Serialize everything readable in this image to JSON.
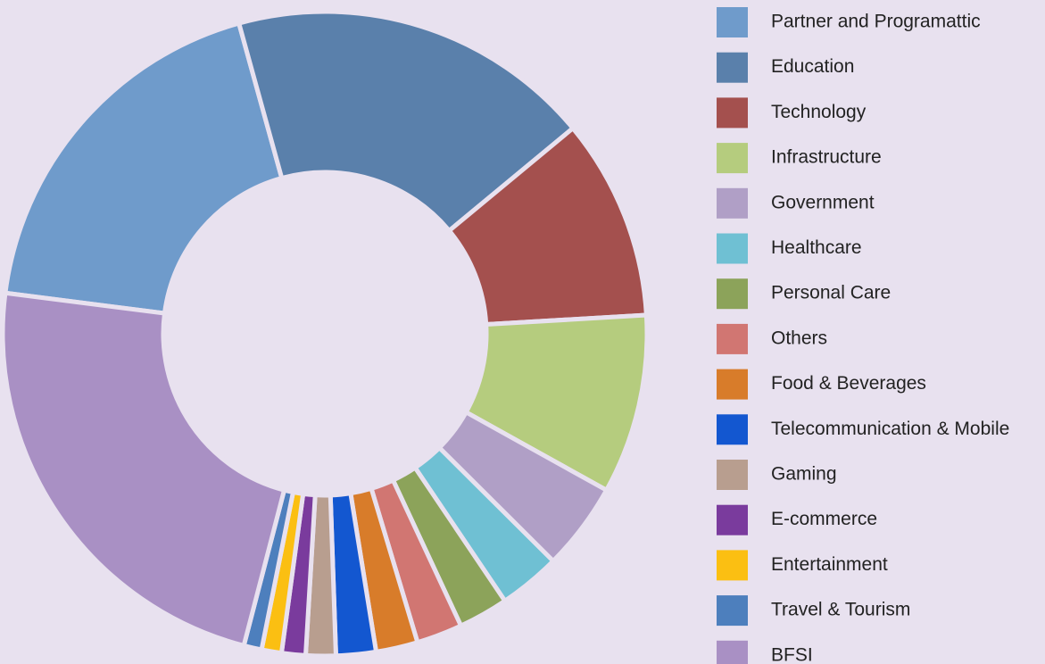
{
  "chart_data": {
    "type": "donut",
    "categories": [
      "Partner and Programattic",
      "Education",
      "Technology",
      "Infrastructure",
      "Government",
      "Healthcare",
      "Personal Care",
      "Others",
      "Food & Beverages",
      "Telecommunication & Mobile",
      "Gaming",
      "E-commerce",
      "Entertainment",
      "Travel & Tourism",
      "BFSI"
    ],
    "values": [
      18.7,
      18.3,
      10.1,
      9.0,
      4.4,
      3.1,
      2.5,
      2.3,
      2.1,
      2.0,
      1.5,
      1.2,
      1.0,
      0.9,
      23.0
    ],
    "colors": [
      "#6f9bcb",
      "#5a80ab",
      "#a4504e",
      "#b5cc7e",
      "#b09fc6",
      "#6fc0d3",
      "#8ca35a",
      "#d17672",
      "#d87c2a",
      "#1357d0",
      "#b89e8f",
      "#7a3b9d",
      "#fbbf12",
      "#4d7fbd",
      "#a990c4"
    ],
    "legend": "right"
  }
}
